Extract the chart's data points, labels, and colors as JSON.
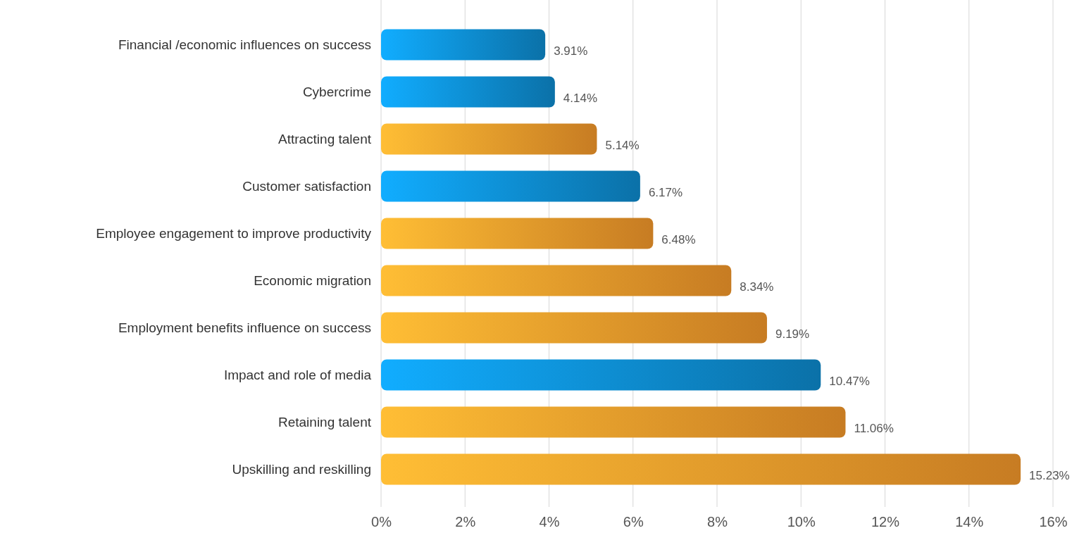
{
  "chart_data": {
    "type": "bar",
    "orientation": "horizontal",
    "categories": [
      "Financial /economic influences on success",
      "Cybercrime",
      "Attracting talent",
      "Customer satisfaction",
      "Employee engagement to improve productivity",
      "Economic migration",
      "Employment benefits influence on success",
      "Impact and role of media",
      "Retaining talent",
      "Upskilling and reskilling"
    ],
    "values": [
      3.91,
      4.14,
      5.14,
      6.17,
      6.48,
      8.34,
      9.19,
      10.47,
      11.06,
      15.23
    ],
    "value_labels": [
      "3.91%",
      "4.14%",
      "5.14%",
      "6.17%",
      "6.48%",
      "8.34%",
      "9.19%",
      "10.47%",
      "11.06%",
      "15.23%"
    ],
    "colors": [
      "#0e8cd0",
      "#0e8cd0",
      "#f7992b",
      "#0e8cd0",
      "#f7992b",
      "#f7992b",
      "#f7992b",
      "#0e8cd0",
      "#f7992b",
      "#f7992b"
    ],
    "xlim": [
      0,
      16
    ],
    "xticks": [
      {
        "value": 0,
        "label": "0%"
      },
      {
        "value": 2,
        "label": "2%"
      },
      {
        "value": 4,
        "label": "4%"
      },
      {
        "value": 6,
        "label": "6%"
      },
      {
        "value": 8,
        "label": "8%"
      },
      {
        "value": 10,
        "label": "10%"
      },
      {
        "value": 12,
        "label": "12%"
      },
      {
        "value": 14,
        "label": "14%"
      },
      {
        "value": 16,
        "label": "16%"
      }
    ],
    "grid": "x"
  }
}
